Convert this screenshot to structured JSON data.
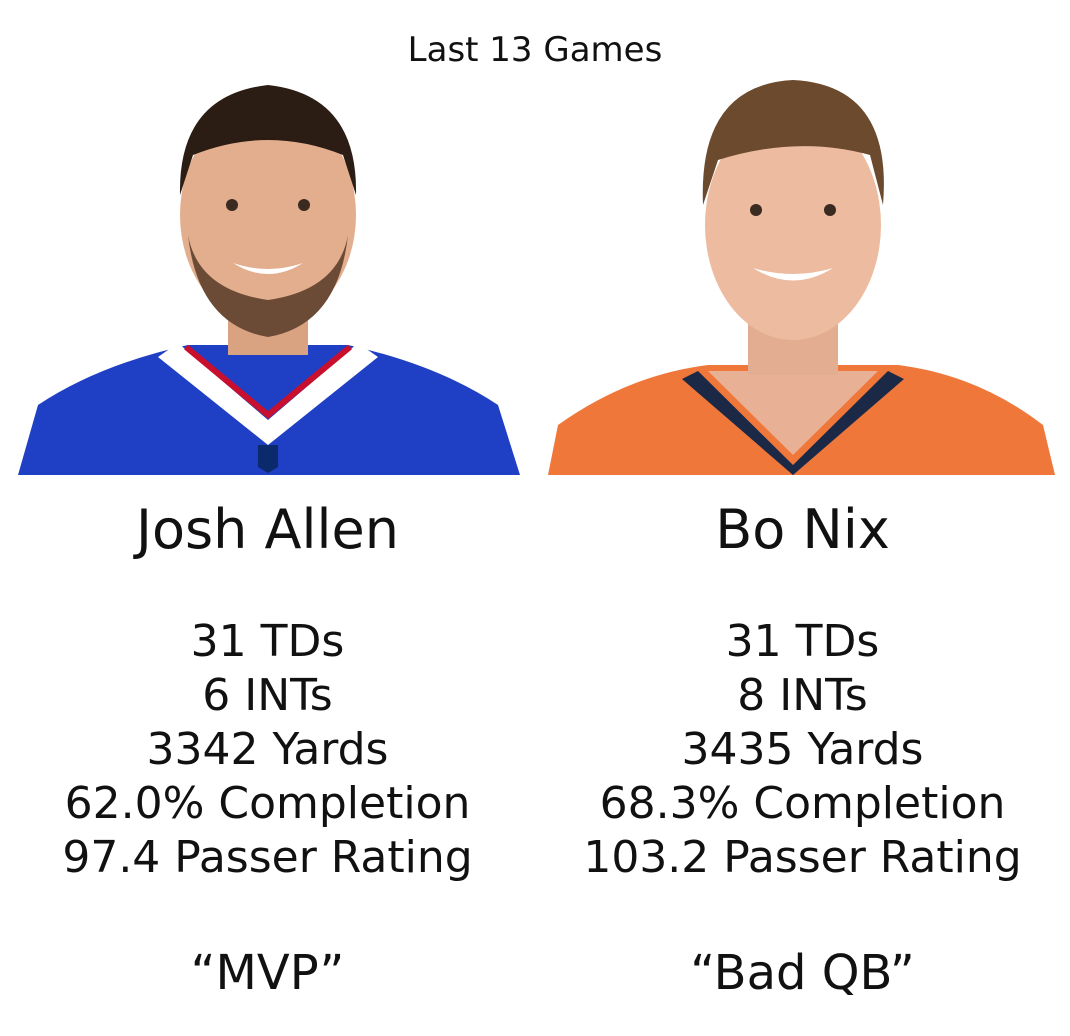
{
  "header": {
    "title": "Last 13 Games"
  },
  "players": [
    {
      "name": "Josh Allen",
      "stats": [
        "31 TDs",
        "6 INTs",
        "3342 Yards",
        "62.0% Completion",
        "97.4 Passer Rating"
      ],
      "label": "“MVP”"
    },
    {
      "name": "Bo Nix",
      "stats": [
        "31 TDs",
        "8 INTs",
        "3435 Yards",
        "68.3% Completion",
        "103.2 Passer Rating"
      ],
      "label": "“Bad QB”"
    }
  ]
}
